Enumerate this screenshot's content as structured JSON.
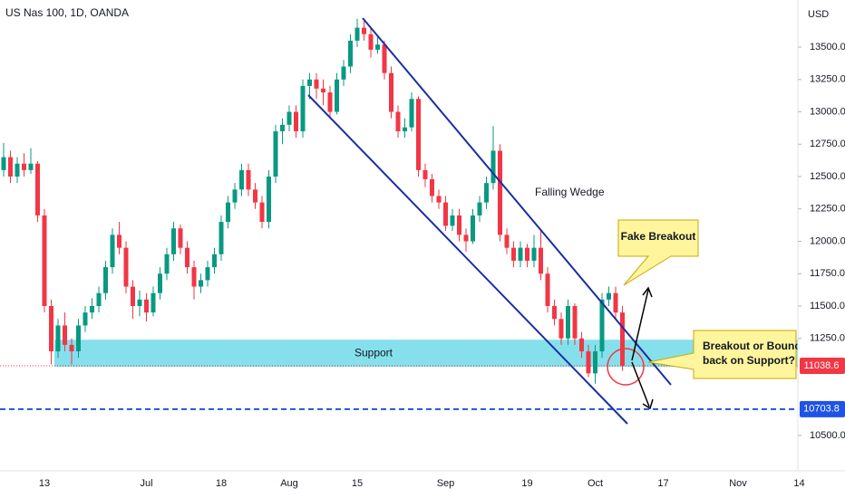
{
  "chart_data": {
    "type": "candlestick",
    "title": "US Nas 100, 1D, OANDA",
    "currency": "USD",
    "up_color": "#089981",
    "down_color": "#f23645",
    "ylim": [
      10227,
      13864
    ],
    "yticks": [
      {
        "value": 10500,
        "label": "10500.0"
      },
      {
        "value": 11250,
        "label": "11250.0"
      },
      {
        "value": 11500,
        "label": "11500.0"
      },
      {
        "value": 11750,
        "label": "11750.0"
      },
      {
        "value": 12000,
        "label": "12000.0"
      },
      {
        "value": 12250,
        "label": "12250.0"
      },
      {
        "value": 12500,
        "label": "12500.0"
      },
      {
        "value": 12750,
        "label": "12750.0"
      },
      {
        "value": 13000,
        "label": "13000.0"
      },
      {
        "value": 13250,
        "label": "13250.0"
      },
      {
        "value": 13500,
        "label": "13500.0"
      }
    ],
    "categories": [
      null,
      null,
      null,
      null,
      null,
      null,
      "13",
      null,
      null,
      null,
      null,
      null,
      null,
      null,
      null,
      null,
      null,
      null,
      null,
      null,
      null,
      "Jul",
      null,
      null,
      null,
      null,
      null,
      null,
      null,
      null,
      null,
      null,
      "18",
      null,
      null,
      null,
      null,
      null,
      null,
      null,
      null,
      null,
      "Aug",
      null,
      null,
      null,
      null,
      null,
      null,
      null,
      null,
      null,
      "15",
      null,
      null,
      null,
      null,
      null,
      null,
      null,
      null,
      null,
      null,
      null,
      null,
      "Sep",
      null,
      null,
      null,
      null,
      null,
      null,
      null,
      null,
      null,
      null,
      null,
      "19",
      null,
      null,
      null,
      null,
      null,
      null,
      null,
      null,
      null,
      "Oct",
      null,
      null,
      null,
      null,
      null,
      null,
      null,
      null,
      null,
      "17",
      null,
      null,
      null,
      null,
      null,
      null,
      null,
      null,
      null,
      null,
      "Nov",
      null,
      null,
      null,
      null,
      null,
      null,
      null,
      null,
      "14"
    ],
    "ohlc": [
      [
        12550,
        12760,
        12500,
        12650
      ],
      [
        12650,
        12700,
        12450,
        12500
      ],
      [
        12500,
        12650,
        12450,
        12600
      ],
      [
        12600,
        12680,
        12500,
        12550
      ],
      [
        12550,
        12720,
        12520,
        12600
      ],
      [
        12600,
        12620,
        12150,
        12200
      ],
      [
        12200,
        12250,
        11450,
        11500
      ],
      [
        11500,
        11550,
        11050,
        11150
      ],
      [
        11150,
        11400,
        11100,
        11350
      ],
      [
        11350,
        11450,
        11150,
        11200
      ],
      [
        11200,
        11250,
        11050,
        11150
      ],
      [
        11150,
        11400,
        11100,
        11350
      ],
      [
        11350,
        11500,
        11300,
        11450
      ],
      [
        11450,
        11560,
        11400,
        11500
      ],
      [
        11500,
        11650,
        11450,
        11600
      ],
      [
        11600,
        11850,
        11550,
        11800
      ],
      [
        11800,
        12100,
        11750,
        12050
      ],
      [
        12050,
        12150,
        11900,
        11950
      ],
      [
        11950,
        12000,
        11600,
        11650
      ],
      [
        11650,
        11700,
        11400,
        11500
      ],
      [
        11500,
        11620,
        11420,
        11550
      ],
      [
        11550,
        11600,
        11380,
        11450
      ],
      [
        11450,
        11650,
        11420,
        11600
      ],
      [
        11600,
        11800,
        11550,
        11750
      ],
      [
        11750,
        11950,
        11700,
        11900
      ],
      [
        11900,
        12150,
        11850,
        12100
      ],
      [
        12100,
        12130,
        11900,
        11950
      ],
      [
        11950,
        12000,
        11750,
        11800
      ],
      [
        11800,
        11850,
        11550,
        11650
      ],
      [
        11650,
        11750,
        11600,
        11700
      ],
      [
        11700,
        11850,
        11650,
        11800
      ],
      [
        11800,
        11950,
        11750,
        11900
      ],
      [
        11900,
        12200,
        11850,
        12150
      ],
      [
        12150,
        12350,
        12100,
        12300
      ],
      [
        12300,
        12450,
        12250,
        12400
      ],
      [
        12400,
        12600,
        12350,
        12550
      ],
      [
        12550,
        12600,
        12350,
        12400
      ],
      [
        12400,
        12450,
        12250,
        12300
      ],
      [
        12300,
        12350,
        12100,
        12150
      ],
      [
        12150,
        12550,
        12100,
        12500
      ],
      [
        12500,
        12900,
        12450,
        12850
      ],
      [
        12850,
        12950,
        12750,
        12900
      ],
      [
        12900,
        13050,
        12850,
        13000
      ],
      [
        13000,
        13050,
        12800,
        12850
      ],
      [
        12850,
        13250,
        12800,
        13200
      ],
      [
        13200,
        13300,
        13100,
        13250
      ],
      [
        13250,
        13300,
        13100,
        13180
      ],
      [
        13180,
        13250,
        13050,
        13150
      ],
      [
        13150,
        13200,
        12950,
        13000
      ],
      [
        13000,
        13300,
        12980,
        13250
      ],
      [
        13250,
        13400,
        13200,
        13350
      ],
      [
        13350,
        13600,
        13300,
        13550
      ],
      [
        13550,
        13720,
        13500,
        13650
      ],
      [
        13650,
        13700,
        13550,
        13600
      ],
      [
        13600,
        13650,
        13420,
        13480
      ],
      [
        13480,
        13580,
        13450,
        13520
      ],
      [
        13520,
        13550,
        13250,
        13300
      ],
      [
        13300,
        13350,
        12950,
        13000
      ],
      [
        13000,
        13050,
        12800,
        12850
      ],
      [
        12850,
        12950,
        12800,
        12880
      ],
      [
        12880,
        13150,
        12850,
        13100
      ],
      [
        13100,
        13120,
        12500,
        12550
      ],
      [
        12550,
        12600,
        12420,
        12480
      ],
      [
        12480,
        12520,
        12300,
        12350
      ],
      [
        12350,
        12400,
        12250,
        12300
      ],
      [
        12300,
        12350,
        12080,
        12120
      ],
      [
        12120,
        12250,
        12080,
        12200
      ],
      [
        12200,
        12250,
        12000,
        12050
      ],
      [
        12050,
        12100,
        11920,
        12000
      ],
      [
        12000,
        12250,
        11980,
        12200
      ],
      [
        12200,
        12350,
        12150,
        12300
      ],
      [
        12300,
        12500,
        12250,
        12450
      ],
      [
        12450,
        12890,
        12400,
        12700
      ],
      [
        12700,
        12750,
        12000,
        12050
      ],
      [
        12050,
        12100,
        11900,
        11950
      ],
      [
        11950,
        12000,
        11800,
        11850
      ],
      [
        11850,
        12000,
        11800,
        11950
      ],
      [
        11950,
        11980,
        11800,
        11850
      ],
      [
        11850,
        12050,
        11800,
        11950
      ],
      [
        11950,
        12080,
        11700,
        11750
      ],
      [
        11750,
        11800,
        11450,
        11500
      ],
      [
        11500,
        11550,
        11350,
        11400
      ],
      [
        11400,
        11450,
        11200,
        11250
      ],
      [
        11250,
        11550,
        11200,
        11500
      ],
      [
        11500,
        11520,
        11200,
        11250
      ],
      [
        11250,
        11300,
        11100,
        11150
      ],
      [
        11150,
        11200,
        10950,
        10980
      ],
      [
        10980,
        11200,
        10900,
        11150
      ],
      [
        11150,
        11600,
        11100,
        11550
      ],
      [
        11550,
        11650,
        11500,
        11600
      ],
      [
        11600,
        11650,
        11400,
        11450
      ],
      [
        11450,
        11500,
        11000,
        11040
      ],
      null,
      null,
      null,
      null,
      null,
      null,
      null,
      null,
      null,
      null,
      null,
      null,
      null,
      null,
      null,
      null,
      null,
      null,
      null,
      null,
      null,
      null,
      null,
      null,
      null,
      null
    ],
    "last_price": 11038.6,
    "level": 10703.8,
    "support": {
      "label": "Support",
      "range": [
        11030,
        11240
      ]
    },
    "annotations": {
      "falling_wedge": "Falling Wedge",
      "fake_breakout": "Fake Breakout",
      "question": [
        "Breakout or Bounce",
        "back on Support?"
      ]
    }
  }
}
